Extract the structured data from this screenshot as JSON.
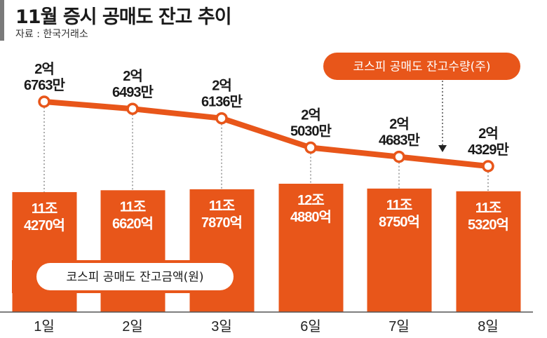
{
  "header": {
    "title": "11월 증시 공매도 잔고 추이",
    "source": "자료 : 한국거래소"
  },
  "colors": {
    "orange": "#E8561A",
    "text": "#1a1a1a",
    "accent_bar": "#7a7a7a"
  },
  "chart_data": {
    "type": "bar+line",
    "title": "11월 증시 공매도 잔고 추이",
    "categories": [
      "1일",
      "2일",
      "3일",
      "6일",
      "7일",
      "8일"
    ],
    "series": [
      {
        "name": "코스피 공매도 잔고금액(원)",
        "type": "bar",
        "unit": "억원",
        "values": [
          114270,
          116620,
          117870,
          124880,
          118750,
          115320
        ],
        "labels": [
          [
            "11조",
            "4270억"
          ],
          [
            "11조",
            "6620억"
          ],
          [
            "11조",
            "7870억"
          ],
          [
            "12조",
            "4880억"
          ],
          [
            "11조",
            "8750억"
          ],
          [
            "11조",
            "5320억"
          ]
        ]
      },
      {
        "name": "코스피 공매도 잔고수량(주)",
        "type": "line",
        "unit": "만주",
        "values": [
          26763,
          26493,
          26136,
          25030,
          24683,
          24329
        ],
        "labels": [
          [
            "2억",
            "6763만"
          ],
          [
            "2억",
            "6493만"
          ],
          [
            "2억",
            "6136만"
          ],
          [
            "2억",
            "5030만"
          ],
          [
            "2억",
            "4683만"
          ],
          [
            "2억",
            "4329만"
          ]
        ]
      }
    ],
    "legend": {
      "line_label": "코스피 공매도 잔고수량(주)",
      "bar_label": "코스피 공매도 잔고금액(원)"
    },
    "grid": false
  }
}
